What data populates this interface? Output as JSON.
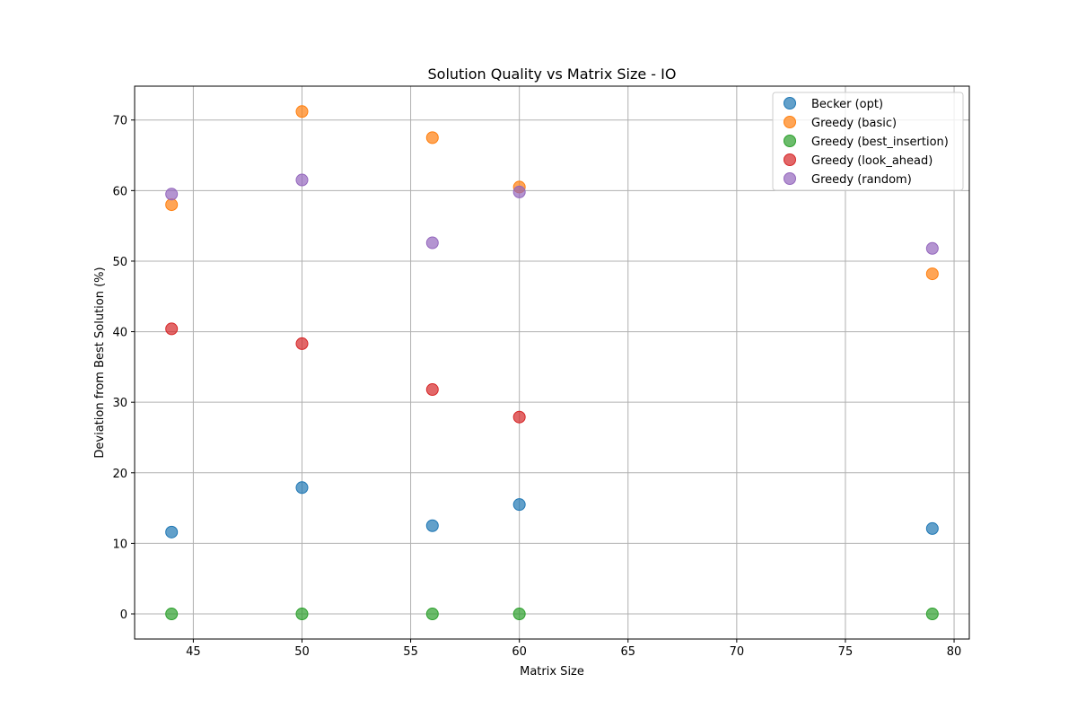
{
  "chart_data": {
    "type": "scatter",
    "title": "Solution Quality vs Matrix Size - IO",
    "xlabel": "Matrix Size",
    "ylabel": "Deviation from Best Solution (%)",
    "xlim": [
      42.3,
      80.7
    ],
    "ylim": [
      -3.56,
      74.8
    ],
    "xticks": [
      45,
      50,
      55,
      60,
      65,
      70,
      75,
      80
    ],
    "yticks": [
      0,
      10,
      20,
      30,
      40,
      50,
      60,
      70
    ],
    "grid": true,
    "legend_position": "top-right",
    "series": [
      {
        "name": "Becker (opt)",
        "color": "#1f77b4",
        "points": [
          [
            44,
            11.6
          ],
          [
            50,
            17.9
          ],
          [
            56,
            12.5
          ],
          [
            60,
            15.5
          ],
          [
            79,
            12.1
          ]
        ]
      },
      {
        "name": "Greedy (basic)",
        "color": "#ff7f0e",
        "points": [
          [
            44,
            58.0
          ],
          [
            50,
            71.2
          ],
          [
            56,
            67.5
          ],
          [
            60,
            60.5
          ],
          [
            79,
            48.2
          ]
        ]
      },
      {
        "name": "Greedy (best_insertion)",
        "color": "#2ca02c",
        "points": [
          [
            44,
            0.0
          ],
          [
            50,
            0.0
          ],
          [
            56,
            0.0
          ],
          [
            60,
            0.0
          ],
          [
            79,
            0.0
          ]
        ]
      },
      {
        "name": "Greedy (look_ahead)",
        "color": "#d62728",
        "points": [
          [
            44,
            40.4
          ],
          [
            50,
            38.3
          ],
          [
            56,
            31.8
          ],
          [
            60,
            27.9
          ]
        ]
      },
      {
        "name": "Greedy (random)",
        "color": "#9467bd",
        "points": [
          [
            44,
            59.5
          ],
          [
            50,
            61.5
          ],
          [
            56,
            52.6
          ],
          [
            60,
            59.8
          ],
          [
            79,
            51.8
          ]
        ]
      }
    ]
  }
}
